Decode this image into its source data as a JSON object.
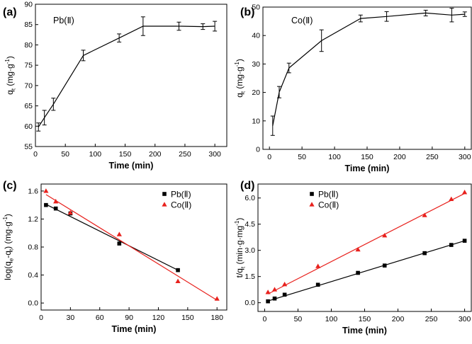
{
  "panels": [
    {
      "label": "(a)",
      "annotation": "Pb(Ⅱ)",
      "chart_data": {
        "type": "line",
        "xlabel": "Time (min)",
        "ylabel": "q_t (mg·g⁻¹)",
        "xlim": [
          0,
          320
        ],
        "ylim": [
          55,
          90
        ],
        "xticks": [
          0,
          50,
          100,
          150,
          200,
          250,
          300
        ],
        "yticks": [
          55,
          60,
          65,
          70,
          75,
          80,
          85,
          90
        ],
        "series": [
          {
            "name": "Pb(Ⅱ)",
            "color": "#000000",
            "x": [
              5,
              15,
              30,
              80,
              140,
              180,
              240,
              280,
              300
            ],
            "y": [
              59.8,
              62.1,
              65.4,
              77.4,
              81.7,
              84.6,
              84.6,
              84.5,
              84.6
            ],
            "err": [
              1.0,
              1.8,
              1.5,
              1.3,
              1.0,
              2.3,
              1.0,
              0.7,
              1.2
            ]
          }
        ]
      }
    },
    {
      "label": "(b)",
      "annotation": "Co(Ⅱ)",
      "chart_data": {
        "type": "line",
        "xlabel": "Time (min)",
        "ylabel": "q_t (mg·g⁻¹)",
        "xlim": [
          -10,
          310
        ],
        "ylim": [
          0,
          50
        ],
        "xticks": [
          0,
          50,
          100,
          150,
          200,
          250,
          300
        ],
        "yticks": [
          0,
          10,
          20,
          30,
          40,
          50
        ],
        "series": [
          {
            "name": "Co(Ⅱ)",
            "color": "#000000",
            "x": [
              5,
              15,
              30,
              80,
              140,
              180,
              240,
              280,
              300
            ],
            "y": [
              8.3,
              20.1,
              28.6,
              38.2,
              46.0,
              46.7,
              47.9,
              47.2,
              47.5
            ],
            "err": [
              3.4,
              2.0,
              1.7,
              3.8,
              1.2,
              1.7,
              1.0,
              2.4,
              0.8
            ]
          }
        ]
      }
    },
    {
      "label": "(c)",
      "chart_data": {
        "type": "scatter",
        "xlabel": "Time (min)",
        "ylabel": "log(q_e-q_t) (mg·g⁻¹)",
        "xlim": [
          0,
          190
        ],
        "ylim": [
          -0.1,
          1.7
        ],
        "xticks": [
          0,
          30,
          60,
          90,
          120,
          150,
          180
        ],
        "yticks": [
          0.0,
          0.4,
          0.8,
          1.2,
          1.6
        ],
        "ytick_labels": [
          "0.0",
          "0.4",
          "0.8",
          "1.2",
          "1.6"
        ],
        "legend_position": "top-right",
        "series": [
          {
            "name": "Pb(Ⅱ)",
            "marker": "square",
            "color": "#000000",
            "x": [
              5,
              15,
              30,
              80,
              140
            ],
            "y": [
              1.4,
              1.35,
              1.28,
              0.85,
              0.47
            ],
            "fit": [
              [
                5,
                1.41
              ],
              [
                140,
                0.47
              ]
            ]
          },
          {
            "name": "Co(Ⅱ)",
            "marker": "triangle",
            "color": "#e8211d",
            "x": [
              5,
              15,
              30,
              80,
              140,
              180
            ],
            "y": [
              1.6,
              1.45,
              1.29,
              0.98,
              0.31,
              0.06
            ],
            "fit": [
              [
                5,
                1.55
              ],
              [
                180,
                0.04
              ]
            ]
          }
        ]
      }
    },
    {
      "label": "(d)",
      "chart_data": {
        "type": "scatter",
        "xlabel": "Time (min)",
        "ylabel": "t/q_t (min·g·mg⁻¹)",
        "xlim": [
          -10,
          310
        ],
        "ylim": [
          -0.5,
          6.8
        ],
        "xticks": [
          0,
          50,
          100,
          150,
          200,
          250,
          300
        ],
        "yticks": [
          0.0,
          1.5,
          3.0,
          4.5,
          6.0
        ],
        "ytick_labels": [
          "0.0",
          "1.5",
          "3.0",
          "4.5",
          "6.0"
        ],
        "legend_position": "top-left",
        "series": [
          {
            "name": "Pb(Ⅱ)",
            "marker": "square",
            "color": "#000000",
            "x": [
              5,
              15,
              30,
              80,
              140,
              180,
              240,
              280,
              300
            ],
            "y": [
              0.08,
              0.24,
              0.46,
              1.03,
              1.71,
              2.13,
              2.84,
              3.31,
              3.55
            ],
            "fit": [
              [
                5,
                0.1
              ],
              [
                300,
                3.55
              ]
            ]
          },
          {
            "name": "Co(Ⅱ)",
            "marker": "triangle",
            "color": "#e8211d",
            "x": [
              5,
              15,
              30,
              80,
              140,
              180,
              240,
              280,
              300
            ],
            "y": [
              0.6,
              0.75,
              1.05,
              2.09,
              3.04,
              3.85,
              5.01,
              5.93,
              6.32
            ],
            "fit": [
              [
                5,
                0.5
              ],
              [
                300,
                6.26
              ]
            ]
          }
        ]
      }
    }
  ]
}
